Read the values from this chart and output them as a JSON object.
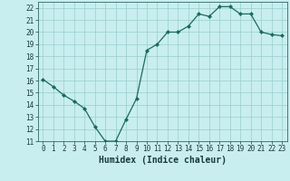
{
  "x": [
    0,
    1,
    2,
    3,
    4,
    5,
    6,
    7,
    8,
    9,
    10,
    11,
    12,
    13,
    14,
    15,
    16,
    17,
    18,
    19,
    20,
    21,
    22,
    23
  ],
  "y": [
    16.1,
    15.5,
    14.8,
    14.3,
    13.7,
    12.2,
    11.0,
    11.0,
    12.8,
    14.5,
    18.5,
    19.0,
    20.0,
    20.0,
    20.5,
    21.5,
    21.3,
    22.1,
    22.1,
    21.5,
    21.5,
    20.0,
    19.8,
    19.7
  ],
  "xlabel": "Humidex (Indice chaleur)",
  "ylim": [
    11,
    22.5
  ],
  "xlim": [
    -0.5,
    23.5
  ],
  "yticks": [
    11,
    12,
    13,
    14,
    15,
    16,
    17,
    18,
    19,
    20,
    21,
    22
  ],
  "xticks": [
    0,
    1,
    2,
    3,
    4,
    5,
    6,
    7,
    8,
    9,
    10,
    11,
    12,
    13,
    14,
    15,
    16,
    17,
    18,
    19,
    20,
    21,
    22,
    23
  ],
  "line_color": "#1a6b5a",
  "marker_color": "#1a6b5a",
  "bg_color": "#c8eef0",
  "grid_color": "#99cccc",
  "axes_bg": "#c8eef0",
  "tick_fontsize": 5.5,
  "xlabel_fontsize": 7.0
}
